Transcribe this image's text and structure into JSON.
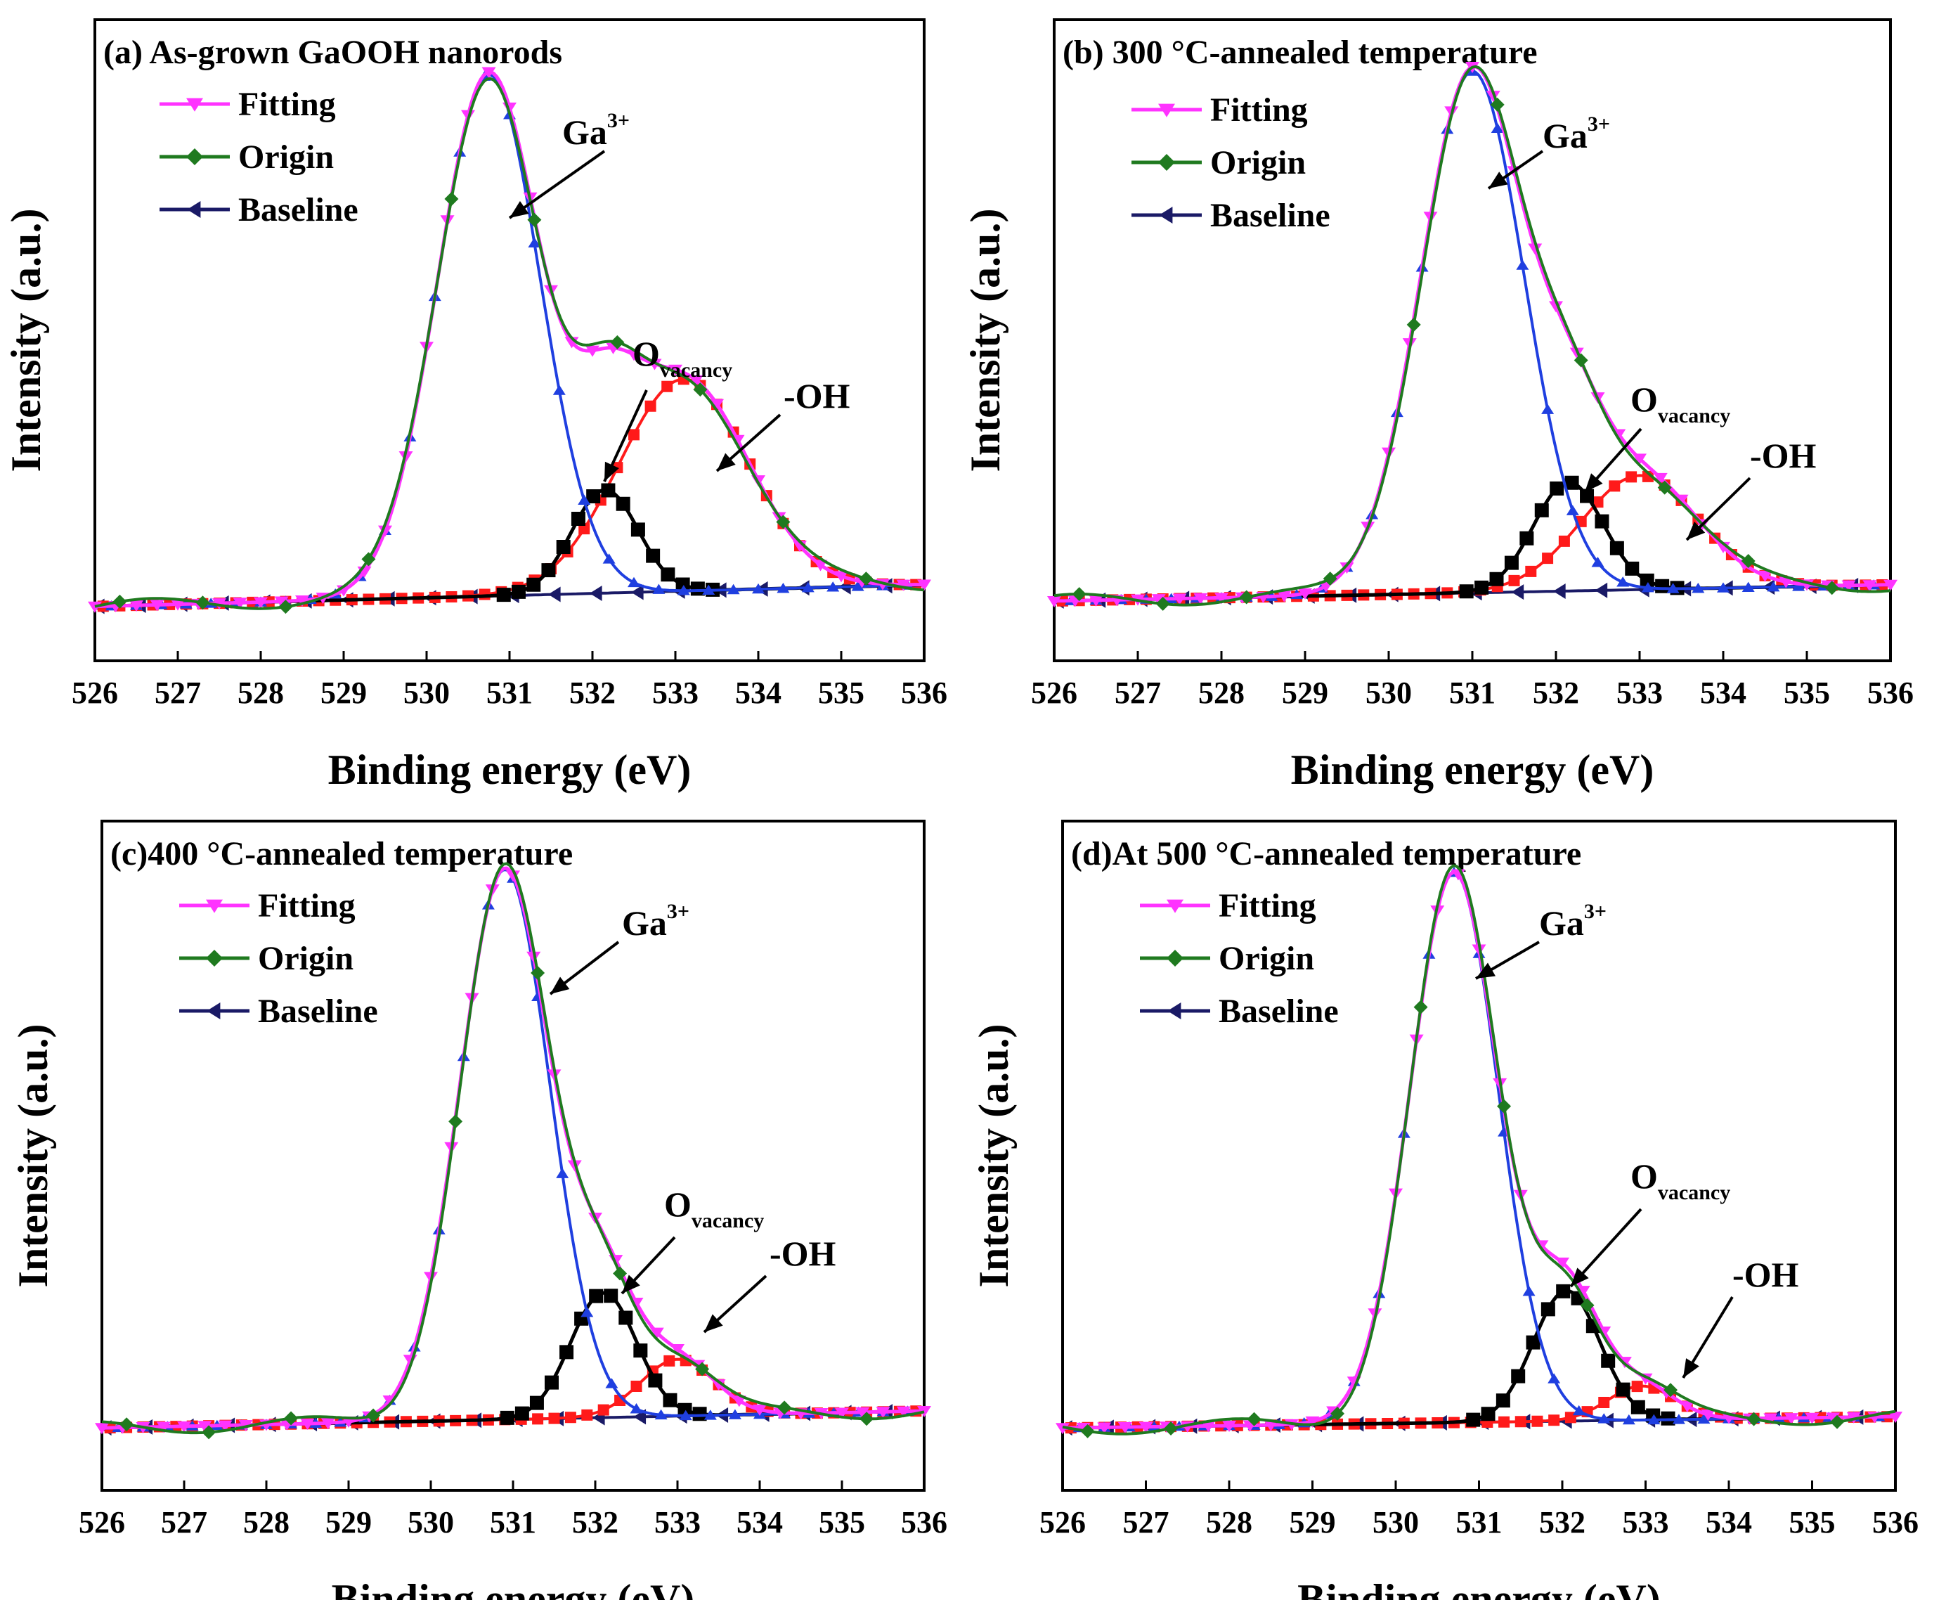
{
  "figure": {
    "panels": [
      {
        "title": "(a) As-grown GaOOH nanorods",
        "annotations": {
          "ga_sup": "3+",
          "ovacancy_sub": "vacancy",
          "oh": "-OH"
        }
      },
      {
        "title": "(b) 300 °C-annealed temperature",
        "annotations": {
          "ga_sup": "3+",
          "ovacancy_sub": "vacancy",
          "oh": "-OH"
        }
      },
      {
        "title": "(c)400 °C-annealed temperature",
        "annotations": {
          "ga_sup": "3+",
          "ovacancy_sub": "vacancy",
          "oh": "-OH"
        }
      },
      {
        "title": "(d)At 500 °C-annealed temperature",
        "annotations": {
          "ga_sup": "3+",
          "ovacancy_sub": "vacancy",
          "oh": "-OH"
        }
      }
    ],
    "legend": [
      "Fitting",
      "Origin",
      "Baseline"
    ],
    "annotation_base": {
      "ga": "Ga",
      "ovacancy": "O"
    }
  },
  "colors": {
    "fitting": "#ff33ff",
    "origin": "#1f7a1f",
    "baseline": "#1a1a66",
    "ga_peak": "#1f3fe0",
    "ovacancy_peak": "#000000",
    "oh_peak": "#ff1a1a",
    "axes": "#000000"
  },
  "chart_data": [
    {
      "type": "line",
      "title": "(a) As-grown GaOOH nanorods",
      "xlabel": "Binding energy (eV)",
      "ylabel": "Intensity (a.u.)",
      "xlim": [
        526,
        536
      ],
      "ylim": [
        -0.06,
        1.12
      ],
      "xticks": [
        526,
        527,
        528,
        529,
        530,
        531,
        532,
        533,
        534,
        535,
        536
      ],
      "baseline": [
        0.04,
        0.08
      ],
      "peaks": {
        "ga3": {
          "center": 530.75,
          "amplitude": 0.96,
          "sigma": 0.62
        },
        "ovacancy": {
          "center": 532.15,
          "amplitude": 0.19,
          "sigma": 0.4
        },
        "oh": {
          "center": 533.1,
          "amplitude": 0.39,
          "sigma": 0.78
        }
      },
      "series": [
        {
          "name": "Fitting",
          "values": "sum of peaks + baseline"
        },
        {
          "name": "Origin",
          "values": "measured spectrum (≈ fitting)"
        },
        {
          "name": "Baseline",
          "values": "linear background"
        },
        {
          "name": "Ga3+",
          "values": "gaussian component"
        },
        {
          "name": "Ovacancy",
          "values": "gaussian component"
        },
        {
          "name": "-OH",
          "values": "gaussian component"
        }
      ]
    },
    {
      "type": "line",
      "title": "(b) 300 °C-annealed temperature",
      "xlabel": "Binding energy (eV)",
      "ylabel": "Intensity (a.u.)",
      "xlim": [
        526,
        536
      ],
      "ylim": [
        -0.06,
        1.12
      ],
      "xticks": [
        526,
        527,
        528,
        529,
        530,
        531,
        532,
        533,
        534,
        535,
        536
      ],
      "baseline": [
        0.05,
        0.08
      ],
      "peaks": {
        "ga3": {
          "center": 531.0,
          "amplitude": 0.96,
          "sigma": 0.62
        },
        "ovacancy": {
          "center": 532.15,
          "amplitude": 0.2,
          "sigma": 0.42
        },
        "oh": {
          "center": 533.0,
          "amplitude": 0.21,
          "sigma": 0.7
        }
      },
      "series": [
        {
          "name": "Fitting",
          "values": "sum of peaks + baseline"
        },
        {
          "name": "Origin",
          "values": "measured spectrum (≈ fitting)"
        },
        {
          "name": "Baseline",
          "values": "linear background"
        },
        {
          "name": "Ga3+",
          "values": "gaussian component"
        },
        {
          "name": "Ovacancy",
          "values": "gaussian component"
        },
        {
          "name": "-OH",
          "values": "gaussian component"
        }
      ]
    },
    {
      "type": "line",
      "title": "(c)400 °C-annealed temperature",
      "xlabel": "Binding energy (eV)",
      "ylabel": "Intensity (a.u.)",
      "xlim": [
        526,
        536
      ],
      "ylim": [
        -0.06,
        1.12
      ],
      "xticks": [
        526,
        527,
        528,
        529,
        530,
        531,
        532,
        533,
        534,
        535,
        536
      ],
      "baseline": [
        0.05,
        0.08
      ],
      "peaks": {
        "ga3": {
          "center": 530.9,
          "amplitude": 0.97,
          "sigma": 0.55
        },
        "ovacancy": {
          "center": 532.1,
          "amplitude": 0.22,
          "sigma": 0.4
        },
        "oh": {
          "center": 533.0,
          "amplitude": 0.1,
          "sigma": 0.45
        }
      },
      "series": [
        {
          "name": "Fitting",
          "values": "sum of peaks + baseline"
        },
        {
          "name": "Origin",
          "values": "measured spectrum (≈ fitting)"
        },
        {
          "name": "Baseline",
          "values": "linear background"
        },
        {
          "name": "Ga3+",
          "values": "gaussian component"
        },
        {
          "name": "Ovacancy",
          "values": "gaussian component"
        },
        {
          "name": "-OH",
          "values": "gaussian component"
        }
      ]
    },
    {
      "type": "line",
      "title": "(d)At 500 °C-annealed temperature",
      "xlabel": "Binding energy (eV)",
      "ylabel": "Intensity (a.u.)",
      "xlim": [
        526,
        536
      ],
      "ylim": [
        -0.06,
        1.12
      ],
      "xticks": [
        526,
        527,
        528,
        529,
        530,
        531,
        532,
        533,
        534,
        535,
        536
      ],
      "baseline": [
        0.05,
        0.07
      ],
      "peaks": {
        "ga3": {
          "center": 530.7,
          "amplitude": 0.97,
          "sigma": 0.53
        },
        "ovacancy": {
          "center": 532.05,
          "amplitude": 0.23,
          "sigma": 0.4
        },
        "oh": {
          "center": 532.95,
          "amplitude": 0.06,
          "sigma": 0.4
        }
      },
      "series": [
        {
          "name": "Fitting",
          "values": "sum of peaks + baseline"
        },
        {
          "name": "Origin",
          "values": "measured spectrum (≈ fitting)"
        },
        {
          "name": "Baseline",
          "values": "linear background"
        },
        {
          "name": "Ga3+",
          "values": "gaussian component"
        },
        {
          "name": "Ovacancy",
          "values": "gaussian component"
        },
        {
          "name": "-OH",
          "values": "gaussian component"
        }
      ]
    }
  ]
}
